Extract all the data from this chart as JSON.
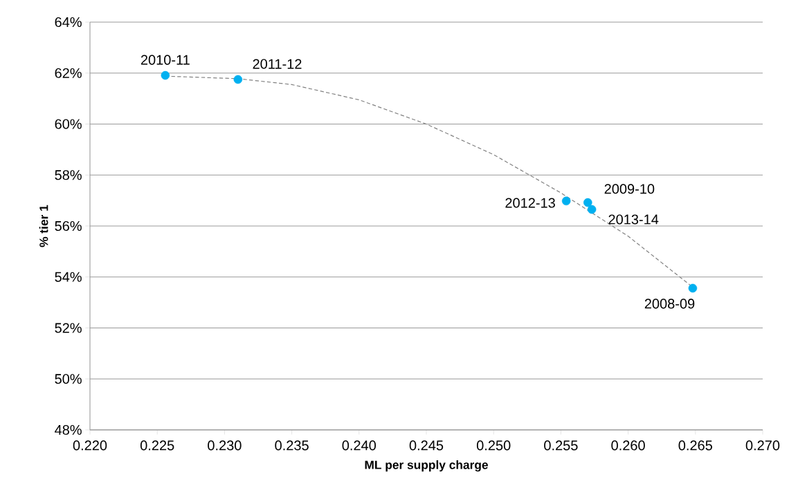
{
  "chart_data": {
    "type": "scatter",
    "xlabel": "ML per supply charge",
    "ylabel": "% tier 1",
    "xlim": [
      0.22,
      0.27
    ],
    "xticks": [
      {
        "value": 0.22,
        "label": "0.220"
      },
      {
        "value": 0.225,
        "label": "0.225"
      },
      {
        "value": 0.23,
        "label": "0.230"
      },
      {
        "value": 0.235,
        "label": "0.235"
      },
      {
        "value": 0.24,
        "label": "0.240"
      },
      {
        "value": 0.245,
        "label": "0.245"
      },
      {
        "value": 0.25,
        "label": "0.250"
      },
      {
        "value": 0.255,
        "label": "0.255"
      },
      {
        "value": 0.26,
        "label": "0.260"
      },
      {
        "value": 0.265,
        "label": "0.265"
      },
      {
        "value": 0.27,
        "label": "0.270"
      }
    ],
    "ylim": [
      48,
      64
    ],
    "yticks": [
      {
        "value": 48,
        "label": "48%"
      },
      {
        "value": 50,
        "label": "50%"
      },
      {
        "value": 52,
        "label": "52%"
      },
      {
        "value": 54,
        "label": "54%"
      },
      {
        "value": 56,
        "label": "56%"
      },
      {
        "value": 58,
        "label": "58%"
      },
      {
        "value": 60,
        "label": "60%"
      },
      {
        "value": 62,
        "label": "62%"
      },
      {
        "value": 64,
        "label": "64%"
      }
    ],
    "grid": "y",
    "series": [
      {
        "color": "#00b0f0",
        "marker": "circle",
        "x": [
          0.2256,
          0.231,
          0.2554,
          0.257,
          0.2573,
          0.2648
        ],
        "values": [
          61.91,
          61.75,
          56.98,
          56.92,
          56.65,
          53.56
        ]
      },
      {
        "type": "line",
        "color": "#808080",
        "line_style": "dashed",
        "marker": "none",
        "x": [
          0.2256,
          0.231,
          0.235,
          0.24,
          0.245,
          0.25,
          0.255,
          0.26,
          0.2648
        ],
        "values": [
          61.88,
          61.78,
          61.55,
          60.95,
          60.0,
          58.8,
          57.3,
          55.6,
          53.6
        ]
      }
    ],
    "annotations": [
      {
        "text": "2010-11",
        "x": 0.2256,
        "y": 61.91
      },
      {
        "text": "2011-12",
        "x": 0.231,
        "y": 61.75
      },
      {
        "text": "2012-13",
        "x": 0.2554,
        "y": 56.98
      },
      {
        "text": "2009-10",
        "x": 0.257,
        "y": 56.92
      },
      {
        "text": "2013-14",
        "x": 0.2573,
        "y": 56.65
      },
      {
        "text": "2008-09",
        "x": 0.2648,
        "y": 53.56
      }
    ]
  }
}
